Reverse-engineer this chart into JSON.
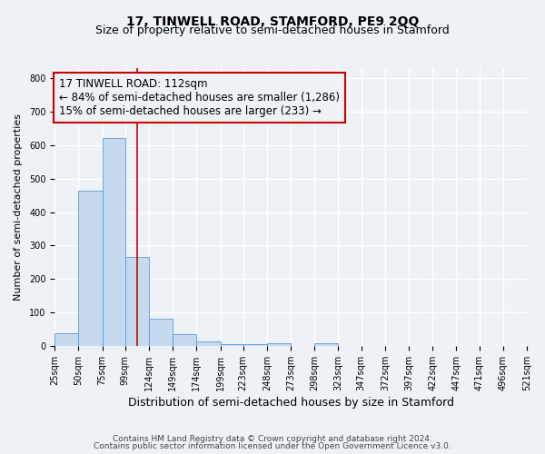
{
  "title": "17, TINWELL ROAD, STAMFORD, PE9 2QQ",
  "subtitle": "Size of property relative to semi-detached houses in Stamford",
  "xlabel": "Distribution of semi-detached houses by size in Stamford",
  "ylabel": "Number of semi-detached properties",
  "bin_edges": [
    25,
    50,
    75,
    99,
    124,
    149,
    174,
    199,
    223,
    248,
    273,
    298,
    323,
    347,
    372,
    397,
    422,
    447,
    471,
    496,
    521
  ],
  "bar_heights": [
    37,
    465,
    620,
    265,
    80,
    35,
    13,
    5,
    5,
    8,
    0,
    8,
    0,
    0,
    0,
    0,
    0,
    0,
    0,
    0
  ],
  "bar_color": "#c5d9ef",
  "bar_edge_color": "#5b9bd5",
  "property_size": 112,
  "vline_color": "#cc0000",
  "annotation_line1": "17 TINWELL ROAD: 112sqm",
  "annotation_line2": "← 84% of semi-detached houses are smaller (1,286)",
  "annotation_line3": "15% of semi-detached houses are larger (233) →",
  "annotation_box_edge": "#cc0000",
  "ylim": [
    0,
    830
  ],
  "yticks": [
    0,
    100,
    200,
    300,
    400,
    500,
    600,
    700,
    800
  ],
  "background_color": "#eef2f7",
  "grid_color": "#ffffff",
  "footer_line1": "Contains HM Land Registry data © Crown copyright and database right 2024.",
  "footer_line2": "Contains public sector information licensed under the Open Government Licence v3.0.",
  "title_fontsize": 10,
  "subtitle_fontsize": 9,
  "xlabel_fontsize": 9,
  "ylabel_fontsize": 8,
  "tick_label_fontsize": 7,
  "annotation_fontsize": 8.5,
  "footer_fontsize": 6.5
}
